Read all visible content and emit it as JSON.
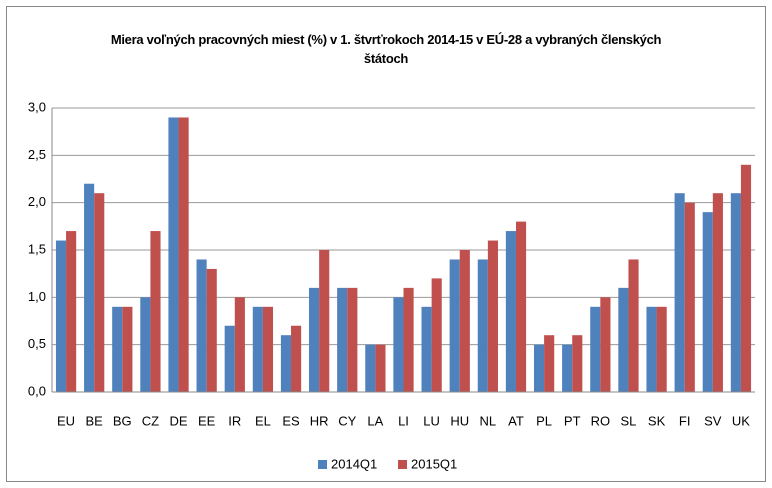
{
  "chart_data": {
    "type": "bar",
    "title": "Miera voľných pracovných miest (%) v 1. štvrťrokoch 2014-15 v EÚ-28 a vybraných členských štátoch",
    "categories": [
      "EU",
      "BE",
      "BG",
      "CZ",
      "DE",
      "EE",
      "IR",
      "EL",
      "ES",
      "HR",
      "CY",
      "LA",
      "LI",
      "LU",
      "HU",
      "NL",
      "AT",
      "PL",
      "PT",
      "RO",
      "SL",
      "SK",
      "FI",
      "SV",
      "UK"
    ],
    "series": [
      {
        "name": "2014Q1",
        "color": "#4f81bd",
        "values": [
          1.6,
          2.2,
          0.9,
          1.0,
          2.9,
          1.4,
          0.7,
          0.9,
          0.6,
          1.1,
          1.1,
          0.5,
          1.0,
          0.9,
          1.4,
          1.4,
          1.7,
          0.5,
          0.5,
          0.9,
          1.1,
          0.9,
          2.1,
          1.9,
          2.1
        ]
      },
      {
        "name": "2015Q1",
        "color": "#c0504d",
        "values": [
          1.7,
          2.1,
          0.9,
          1.7,
          2.9,
          1.3,
          1.0,
          0.9,
          0.7,
          1.5,
          1.1,
          0.5,
          1.1,
          1.2,
          1.5,
          1.6,
          1.8,
          0.6,
          0.6,
          1.0,
          1.4,
          0.9,
          2.0,
          2.1,
          2.4
        ]
      }
    ],
    "ylim": [
      0,
      3
    ],
    "yticks": [
      {
        "value": 0,
        "label": "0,0"
      },
      {
        "value": 0.5,
        "label": "0,5"
      },
      {
        "value": 1,
        "label": "1,0"
      },
      {
        "value": 1.5,
        "label": "1,5"
      },
      {
        "value": 2,
        "label": "2,0"
      },
      {
        "value": 2.5,
        "label": "2,5"
      },
      {
        "value": 3,
        "label": "3,0"
      }
    ],
    "grid": true,
    "legend": "bottom"
  }
}
